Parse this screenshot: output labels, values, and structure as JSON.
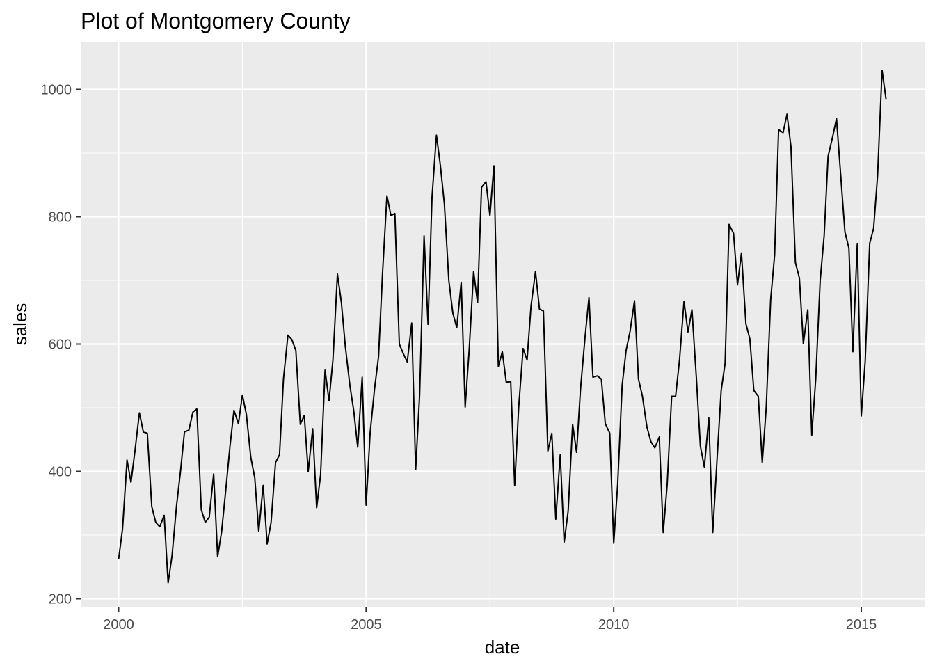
{
  "chart_data": {
    "type": "line",
    "title": "Plot of Montgomery County",
    "xlabel": "date",
    "ylabel": "sales",
    "xlim": [
      2000.0,
      2015.5
    ],
    "ylim": [
      200,
      1060
    ],
    "x_ticks": [
      2000,
      2005,
      2010,
      2015
    ],
    "x_tick_labels": [
      "2000",
      "2005",
      "2010",
      "2015"
    ],
    "y_ticks": [
      200,
      400,
      600,
      800,
      1000
    ],
    "y_tick_labels": [
      "200",
      "400",
      "600",
      "800",
      "1000"
    ],
    "grid": true,
    "legend": "none",
    "colors": {
      "panel": "#EBEBEB",
      "grid": "#FFFFFF",
      "line": "#000000"
    },
    "series": [
      {
        "values": [
          [
            2000.0,
            262
          ],
          [
            2000.08,
            310
          ],
          [
            2000.17,
            418
          ],
          [
            2000.25,
            383
          ],
          [
            2000.33,
            432
          ],
          [
            2000.42,
            492
          ],
          [
            2000.5,
            462
          ],
          [
            2000.58,
            460
          ],
          [
            2000.67,
            345
          ],
          [
            2000.75,
            320
          ],
          [
            2000.83,
            313
          ],
          [
            2000.92,
            331
          ],
          [
            2001.0,
            225
          ],
          [
            2001.08,
            268
          ],
          [
            2001.17,
            346
          ],
          [
            2001.25,
            400
          ],
          [
            2001.33,
            462
          ],
          [
            2001.42,
            465
          ],
          [
            2001.5,
            493
          ],
          [
            2001.58,
            498
          ],
          [
            2001.67,
            340
          ],
          [
            2001.75,
            320
          ],
          [
            2001.83,
            328
          ],
          [
            2001.92,
            396
          ],
          [
            2002.0,
            266
          ],
          [
            2002.08,
            305
          ],
          [
            2002.17,
            375
          ],
          [
            2002.25,
            440
          ],
          [
            2002.33,
            496
          ],
          [
            2002.42,
            475
          ],
          [
            2002.5,
            520
          ],
          [
            2002.58,
            490
          ],
          [
            2002.67,
            422
          ],
          [
            2002.75,
            390
          ],
          [
            2002.83,
            306
          ],
          [
            2002.92,
            378
          ],
          [
            2003.0,
            286
          ],
          [
            2003.08,
            320
          ],
          [
            2003.17,
            414
          ],
          [
            2003.25,
            426
          ],
          [
            2003.33,
            545
          ],
          [
            2003.42,
            614
          ],
          [
            2003.5,
            607
          ],
          [
            2003.58,
            590
          ],
          [
            2003.67,
            474
          ],
          [
            2003.75,
            488
          ],
          [
            2003.83,
            400
          ],
          [
            2003.92,
            467
          ],
          [
            2004.0,
            343
          ],
          [
            2004.08,
            395
          ],
          [
            2004.17,
            559
          ],
          [
            2004.25,
            511
          ],
          [
            2004.33,
            576
          ],
          [
            2004.42,
            710
          ],
          [
            2004.5,
            665
          ],
          [
            2004.58,
            596
          ],
          [
            2004.67,
            536
          ],
          [
            2004.75,
            495
          ],
          [
            2004.83,
            438
          ],
          [
            2004.92,
            548
          ],
          [
            2005.0,
            347
          ],
          [
            2005.08,
            460
          ],
          [
            2005.17,
            530
          ],
          [
            2005.25,
            580
          ],
          [
            2005.33,
            710
          ],
          [
            2005.42,
            833
          ],
          [
            2005.5,
            802
          ],
          [
            2005.58,
            805
          ],
          [
            2005.67,
            600
          ],
          [
            2005.75,
            585
          ],
          [
            2005.83,
            572
          ],
          [
            2005.92,
            633
          ],
          [
            2006.0,
            403
          ],
          [
            2006.08,
            520
          ],
          [
            2006.17,
            770
          ],
          [
            2006.25,
            631
          ],
          [
            2006.33,
            830
          ],
          [
            2006.42,
            928
          ],
          [
            2006.5,
            880
          ],
          [
            2006.58,
            820
          ],
          [
            2006.67,
            700
          ],
          [
            2006.75,
            649
          ],
          [
            2006.83,
            626
          ],
          [
            2006.92,
            697
          ],
          [
            2007.0,
            501
          ],
          [
            2007.08,
            590
          ],
          [
            2007.17,
            714
          ],
          [
            2007.25,
            665
          ],
          [
            2007.33,
            846
          ],
          [
            2007.42,
            855
          ],
          [
            2007.5,
            802
          ],
          [
            2007.58,
            880
          ],
          [
            2007.67,
            565
          ],
          [
            2007.75,
            588
          ],
          [
            2007.83,
            540
          ],
          [
            2007.92,
            541
          ],
          [
            2008.0,
            378
          ],
          [
            2008.08,
            500
          ],
          [
            2008.17,
            593
          ],
          [
            2008.25,
            575
          ],
          [
            2008.33,
            660
          ],
          [
            2008.42,
            714
          ],
          [
            2008.5,
            655
          ],
          [
            2008.58,
            652
          ],
          [
            2008.67,
            432
          ],
          [
            2008.75,
            460
          ],
          [
            2008.83,
            325
          ],
          [
            2008.92,
            426
          ],
          [
            2009.0,
            289
          ],
          [
            2009.08,
            338
          ],
          [
            2009.17,
            474
          ],
          [
            2009.25,
            430
          ],
          [
            2009.33,
            530
          ],
          [
            2009.42,
            610
          ],
          [
            2009.5,
            673
          ],
          [
            2009.58,
            548
          ],
          [
            2009.67,
            550
          ],
          [
            2009.75,
            545
          ],
          [
            2009.83,
            475
          ],
          [
            2009.92,
            460
          ],
          [
            2010.0,
            287
          ],
          [
            2010.08,
            380
          ],
          [
            2010.17,
            535
          ],
          [
            2010.25,
            590
          ],
          [
            2010.33,
            620
          ],
          [
            2010.42,
            668
          ],
          [
            2010.5,
            545
          ],
          [
            2010.58,
            518
          ],
          [
            2010.67,
            470
          ],
          [
            2010.75,
            447
          ],
          [
            2010.83,
            437
          ],
          [
            2010.92,
            454
          ],
          [
            2011.0,
            304
          ],
          [
            2011.08,
            380
          ],
          [
            2011.17,
            518
          ],
          [
            2011.25,
            518
          ],
          [
            2011.33,
            576
          ],
          [
            2011.42,
            667
          ],
          [
            2011.5,
            619
          ],
          [
            2011.58,
            654
          ],
          [
            2011.67,
            546
          ],
          [
            2011.75,
            440
          ],
          [
            2011.83,
            407
          ],
          [
            2011.92,
            484
          ],
          [
            2012.0,
            304
          ],
          [
            2012.08,
            410
          ],
          [
            2012.17,
            527
          ],
          [
            2012.25,
            570
          ],
          [
            2012.33,
            788
          ],
          [
            2012.42,
            774
          ],
          [
            2012.5,
            693
          ],
          [
            2012.58,
            743
          ],
          [
            2012.67,
            632
          ],
          [
            2012.75,
            608
          ],
          [
            2012.83,
            527
          ],
          [
            2012.92,
            518
          ],
          [
            2013.0,
            414
          ],
          [
            2013.08,
            500
          ],
          [
            2013.17,
            670
          ],
          [
            2013.25,
            740
          ],
          [
            2013.33,
            937
          ],
          [
            2013.42,
            932
          ],
          [
            2013.5,
            961
          ],
          [
            2013.58,
            910
          ],
          [
            2013.67,
            728
          ],
          [
            2013.75,
            704
          ],
          [
            2013.83,
            601
          ],
          [
            2013.92,
            654
          ],
          [
            2014.0,
            457
          ],
          [
            2014.08,
            545
          ],
          [
            2014.17,
            700
          ],
          [
            2014.25,
            770
          ],
          [
            2014.33,
            895
          ],
          [
            2014.42,
            925
          ],
          [
            2014.5,
            954
          ],
          [
            2014.58,
            870
          ],
          [
            2014.67,
            776
          ],
          [
            2014.75,
            751
          ],
          [
            2014.83,
            588
          ],
          [
            2014.92,
            758
          ],
          [
            2015.0,
            487
          ],
          [
            2015.08,
            574
          ],
          [
            2015.17,
            758
          ],
          [
            2015.25,
            782
          ],
          [
            2015.33,
            865
          ],
          [
            2015.42,
            1030
          ],
          [
            2015.5,
            985
          ]
        ]
      }
    ]
  }
}
